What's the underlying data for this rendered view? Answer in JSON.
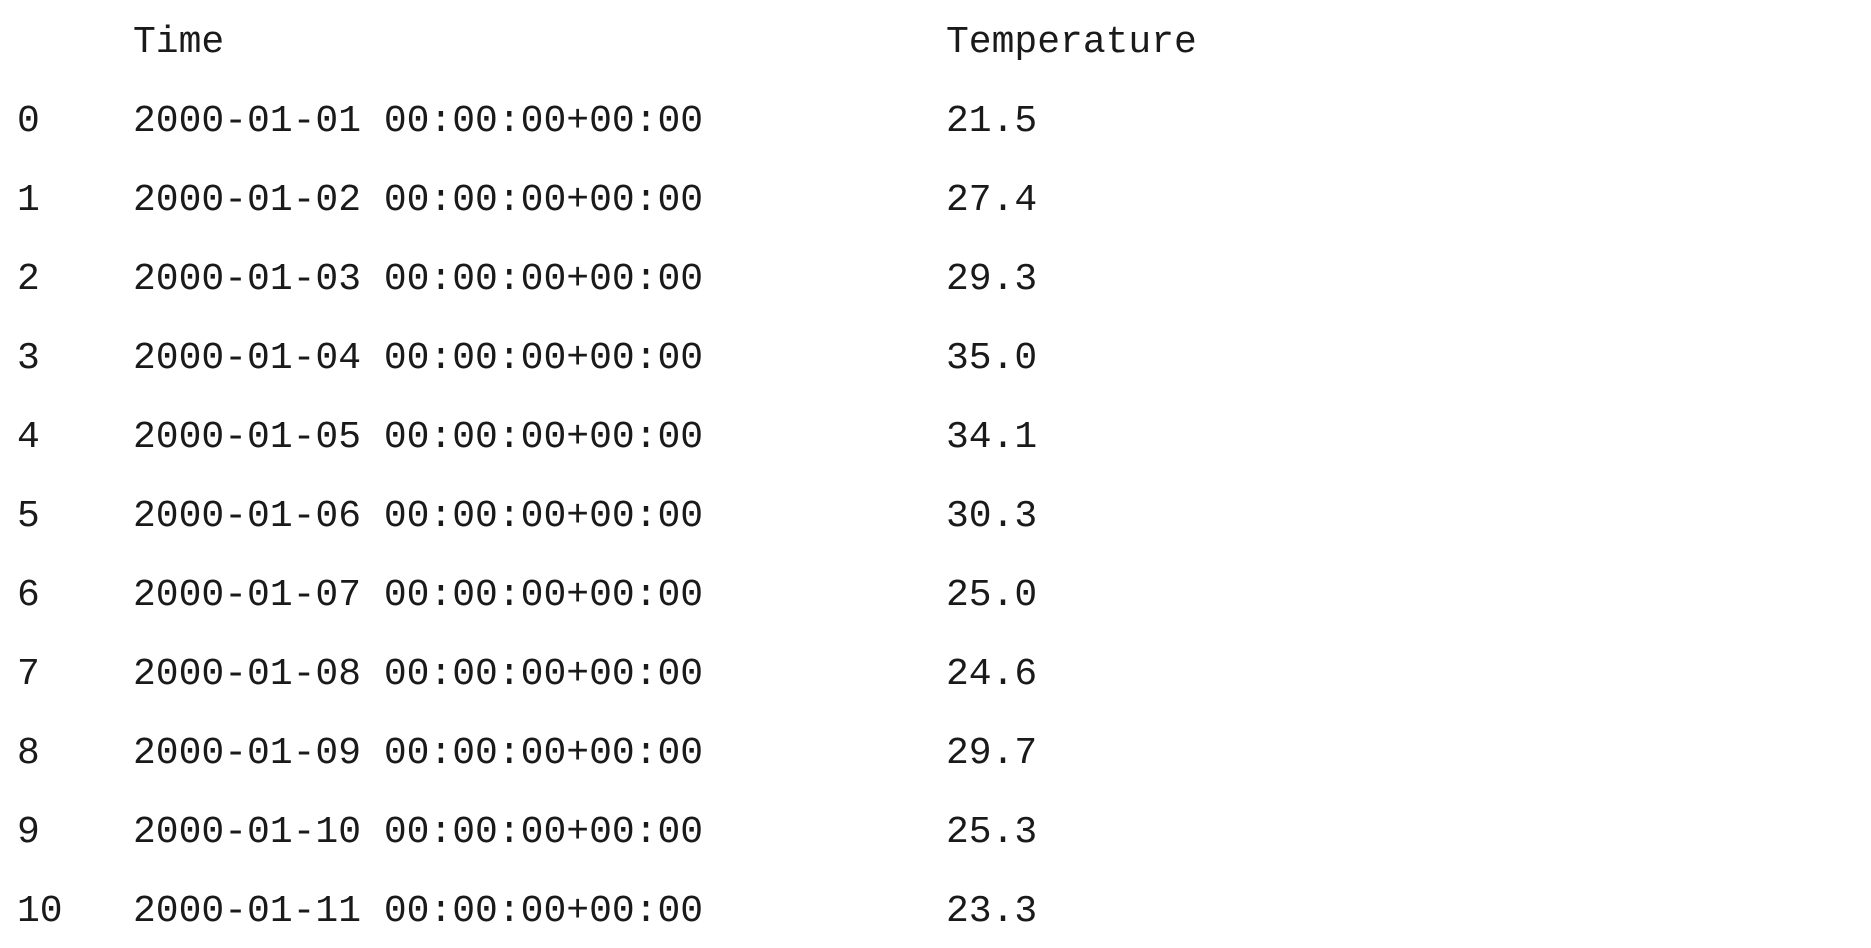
{
  "chart_data": {
    "type": "table",
    "columns": [
      "",
      "Time",
      "Temperature"
    ],
    "rows": [
      {
        "index": "0",
        "time": "2000-01-01 00:00:00+00:00",
        "temperature": "21.5"
      },
      {
        "index": "1",
        "time": "2000-01-02 00:00:00+00:00",
        "temperature": "27.4"
      },
      {
        "index": "2",
        "time": "2000-01-03 00:00:00+00:00",
        "temperature": "29.3"
      },
      {
        "index": "3",
        "time": "2000-01-04 00:00:00+00:00",
        "temperature": "35.0"
      },
      {
        "index": "4",
        "time": "2000-01-05 00:00:00+00:00",
        "temperature": "34.1"
      },
      {
        "index": "5",
        "time": "2000-01-06 00:00:00+00:00",
        "temperature": "30.3"
      },
      {
        "index": "6",
        "time": "2000-01-07 00:00:00+00:00",
        "temperature": "25.0"
      },
      {
        "index": "7",
        "time": "2000-01-08 00:00:00+00:00",
        "temperature": "24.6"
      },
      {
        "index": "8",
        "time": "2000-01-09 00:00:00+00:00",
        "temperature": "29.7"
      },
      {
        "index": "9",
        "time": "2000-01-10 00:00:00+00:00",
        "temperature": "25.3"
      },
      {
        "index": "10",
        "time": "2000-01-11 00:00:00+00:00",
        "temperature": "23.3"
      }
    ]
  },
  "colors": {
    "text": "#1a1a1a",
    "background": "#ffffff"
  }
}
